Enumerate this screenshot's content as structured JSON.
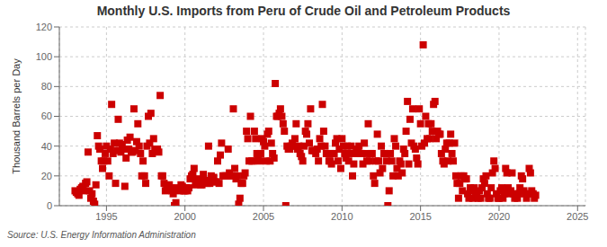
{
  "chart_data": {
    "type": "scatter",
    "title": "Monthly U.S. Imports from Peru of Crude Oil and Petroleum Products",
    "ylabel": "Thousand Barrels per Day",
    "annotations": [
      "Source: U.S. Energy Information Administration"
    ],
    "color": "#CC0000",
    "marker": "square",
    "grid": true,
    "xlim": [
      1992.0,
      2025.5
    ],
    "ylim": [
      0,
      120
    ],
    "xticks": [
      1995,
      2000,
      2005,
      2010,
      2015,
      2020,
      2025
    ],
    "yticks": [
      0,
      20,
      40,
      60,
      80,
      100,
      120
    ],
    "x": [
      1993.0,
      1993.08,
      1993.17,
      1993.25,
      1993.33,
      1993.42,
      1993.5,
      1993.58,
      1993.67,
      1993.75,
      1993.83,
      1993.92,
      1994.0,
      1994.08,
      1994.17,
      1994.25,
      1994.33,
      1994.42,
      1994.5,
      1994.58,
      1994.67,
      1994.75,
      1994.83,
      1994.92,
      1995.0,
      1995.08,
      1995.17,
      1995.25,
      1995.33,
      1995.42,
      1995.5,
      1995.58,
      1995.67,
      1995.75,
      1995.83,
      1995.92,
      1996.0,
      1996.08,
      1996.17,
      1996.25,
      1996.33,
      1996.42,
      1996.5,
      1996.58,
      1996.67,
      1996.75,
      1996.83,
      1996.92,
      1997.0,
      1997.08,
      1997.17,
      1997.25,
      1997.33,
      1997.42,
      1997.5,
      1997.58,
      1997.67,
      1997.75,
      1997.83,
      1997.92,
      1998.0,
      1998.08,
      1998.17,
      1998.25,
      1998.33,
      1998.42,
      1998.5,
      1998.58,
      1998.67,
      1998.75,
      1998.83,
      1998.92,
      1999.0,
      1999.08,
      1999.17,
      1999.25,
      1999.33,
      1999.42,
      1999.5,
      1999.58,
      1999.67,
      1999.75,
      1999.83,
      1999.92,
      2000.0,
      2000.08,
      2000.17,
      2000.25,
      2000.33,
      2000.42,
      2000.5,
      2000.58,
      2000.67,
      2000.75,
      2000.83,
      2000.92,
      2001.0,
      2001.08,
      2001.17,
      2001.25,
      2001.33,
      2001.42,
      2001.5,
      2001.58,
      2001.67,
      2001.75,
      2001.83,
      2001.92,
      2002.0,
      2002.08,
      2002.17,
      2002.25,
      2002.33,
      2002.42,
      2002.5,
      2002.58,
      2002.67,
      2002.75,
      2002.83,
      2002.92,
      2003.0,
      2003.08,
      2003.17,
      2003.25,
      2003.33,
      2003.42,
      2003.5,
      2003.58,
      2003.67,
      2003.75,
      2003.83,
      2003.92,
      2004.0,
      2004.08,
      2004.17,
      2004.25,
      2004.33,
      2004.42,
      2004.5,
      2004.58,
      2004.67,
      2004.75,
      2004.83,
      2004.92,
      2005.0,
      2005.08,
      2005.17,
      2005.25,
      2005.33,
      2005.42,
      2005.5,
      2005.58,
      2005.67,
      2005.75,
      2005.83,
      2005.92,
      2006.0,
      2006.08,
      2006.17,
      2006.25,
      2006.33,
      2006.42,
      2006.5,
      2006.58,
      2006.67,
      2006.75,
      2006.83,
      2006.92,
      2007.0,
      2007.08,
      2007.17,
      2007.25,
      2007.33,
      2007.42,
      2007.5,
      2007.58,
      2007.67,
      2007.75,
      2007.83,
      2007.92,
      2008.0,
      2008.08,
      2008.17,
      2008.25,
      2008.33,
      2008.42,
      2008.5,
      2008.58,
      2008.67,
      2008.75,
      2008.83,
      2008.92,
      2009.0,
      2009.08,
      2009.17,
      2009.25,
      2009.33,
      2009.42,
      2009.5,
      2009.58,
      2009.67,
      2009.75,
      2009.83,
      2009.92,
      2010.0,
      2010.08,
      2010.17,
      2010.25,
      2010.33,
      2010.42,
      2010.5,
      2010.58,
      2010.67,
      2010.75,
      2010.83,
      2010.92,
      2011.0,
      2011.08,
      2011.17,
      2011.25,
      2011.33,
      2011.42,
      2011.5,
      2011.58,
      2011.67,
      2011.75,
      2011.83,
      2011.92,
      2012.0,
      2012.08,
      2012.17,
      2012.25,
      2012.33,
      2012.42,
      2012.5,
      2012.58,
      2012.67,
      2012.75,
      2012.83,
      2012.92,
      2013.0,
      2013.08,
      2013.17,
      2013.25,
      2013.33,
      2013.42,
      2013.5,
      2013.58,
      2013.67,
      2013.75,
      2013.83,
      2013.92,
      2014.0,
      2014.08,
      2014.17,
      2014.25,
      2014.33,
      2014.42,
      2014.5,
      2014.58,
      2014.67,
      2014.75,
      2014.83,
      2014.92,
      2015.0,
      2015.08,
      2015.17,
      2015.25,
      2015.33,
      2015.42,
      2015.5,
      2015.58,
      2015.67,
      2015.75,
      2015.83,
      2015.92,
      2016.0,
      2016.08,
      2016.17,
      2016.25,
      2016.33,
      2016.42,
      2016.5,
      2016.58,
      2016.67,
      2016.75,
      2016.83,
      2016.92,
      2017.0,
      2017.08,
      2017.17,
      2017.25,
      2017.33,
      2017.42,
      2017.5,
      2017.58,
      2017.67,
      2017.75,
      2017.83,
      2017.92,
      2018.0,
      2018.08,
      2018.17,
      2018.25,
      2018.33,
      2018.42,
      2018.5,
      2018.58,
      2018.67,
      2018.75,
      2018.83,
      2018.92,
      2019.0,
      2019.08,
      2019.17,
      2019.25,
      2019.33,
      2019.42,
      2019.5,
      2019.58,
      2019.67,
      2019.75,
      2019.83,
      2019.92,
      2020.0,
      2020.08,
      2020.17,
      2020.25,
      2020.33,
      2020.42,
      2020.5,
      2020.58,
      2020.67,
      2020.75,
      2020.83,
      2020.92,
      2021.0,
      2021.08,
      2021.17,
      2021.25,
      2021.33,
      2021.42,
      2021.5,
      2021.58,
      2021.67,
      2021.75,
      2021.83,
      2021.92,
      2022.0,
      2022.08,
      2022.17,
      2022.25,
      2022.33
    ],
    "values": [
      10,
      9,
      8,
      7,
      11,
      12,
      13,
      10,
      15,
      16,
      36,
      10,
      5,
      8,
      3,
      1,
      14,
      47,
      40,
      38,
      30,
      25,
      30,
      35,
      40,
      30,
      20,
      38,
      68,
      35,
      42,
      15,
      37,
      58,
      42,
      36,
      41,
      38,
      13,
      32,
      44,
      38,
      46,
      36,
      36,
      65,
      37,
      43,
      55,
      40,
      35,
      20,
      30,
      20,
      15,
      40,
      60,
      42,
      62,
      35,
      45,
      38,
      38,
      38,
      36,
      74,
      20,
      20,
      15,
      10,
      11,
      13,
      14,
      12,
      10,
      8,
      0,
      2,
      12,
      11,
      10,
      14,
      13,
      10,
      10,
      12,
      10,
      12,
      18,
      20,
      21,
      25,
      14,
      16,
      18,
      17,
      14,
      14,
      21,
      17,
      16,
      15,
      40,
      15,
      20,
      17,
      19,
      16,
      16,
      30,
      15,
      34,
      42,
      20,
      20,
      20,
      20,
      38,
      22,
      20,
      20,
      65,
      25,
      18,
      20,
      1,
      5,
      15,
      15,
      20,
      22,
      50,
      45,
      30,
      60,
      30,
      30,
      50,
      45,
      35,
      33,
      30,
      35,
      45,
      43,
      40,
      30,
      48,
      50,
      30,
      42,
      35,
      32,
      82,
      60,
      60,
      62,
      65,
      60,
      55,
      50,
      0,
      40,
      38,
      38,
      40,
      42,
      40,
      45,
      55,
      38,
      40,
      35,
      33,
      30,
      40,
      50,
      48,
      55,
      42,
      65,
      37,
      37,
      37,
      35,
      38,
      30,
      45,
      40,
      68,
      50,
      40,
      35,
      35,
      30,
      30,
      28,
      35,
      35,
      42,
      45,
      30,
      38,
      25,
      45,
      40,
      35,
      32,
      40,
      30,
      35,
      40,
      20,
      28,
      35,
      38,
      38,
      40,
      35,
      35,
      28,
      42,
      35,
      30,
      55,
      30,
      35,
      35,
      20,
      15,
      30,
      48,
      30,
      22,
      40,
      25,
      35,
      35,
      30,
      0,
      10,
      35,
      30,
      20,
      45,
      40,
      25,
      20,
      30,
      28,
      22,
      38,
      35,
      50,
      70,
      28,
      58,
      42,
      65,
      40,
      38,
      32,
      28,
      65,
      55,
      40,
      108,
      42,
      60,
      45,
      55,
      45,
      55,
      50,
      68,
      70,
      45,
      50,
      48,
      48,
      35,
      30,
      28,
      38,
      42,
      30,
      42,
      48,
      35,
      30,
      42,
      20,
      15,
      5,
      15,
      20,
      10,
      20,
      18,
      18,
      8,
      5,
      12,
      10,
      5,
      12,
      8,
      8,
      5,
      10,
      5,
      12,
      18,
      15,
      20,
      8,
      5,
      5,
      12,
      22,
      30,
      25,
      8,
      5,
      5,
      10,
      12,
      5,
      8,
      25,
      22,
      12,
      8,
      10,
      22,
      8,
      5,
      7,
      5,
      8,
      12,
      20,
      18,
      10,
      8,
      5,
      8,
      25,
      22,
      10,
      8,
      5,
      7
    ]
  }
}
